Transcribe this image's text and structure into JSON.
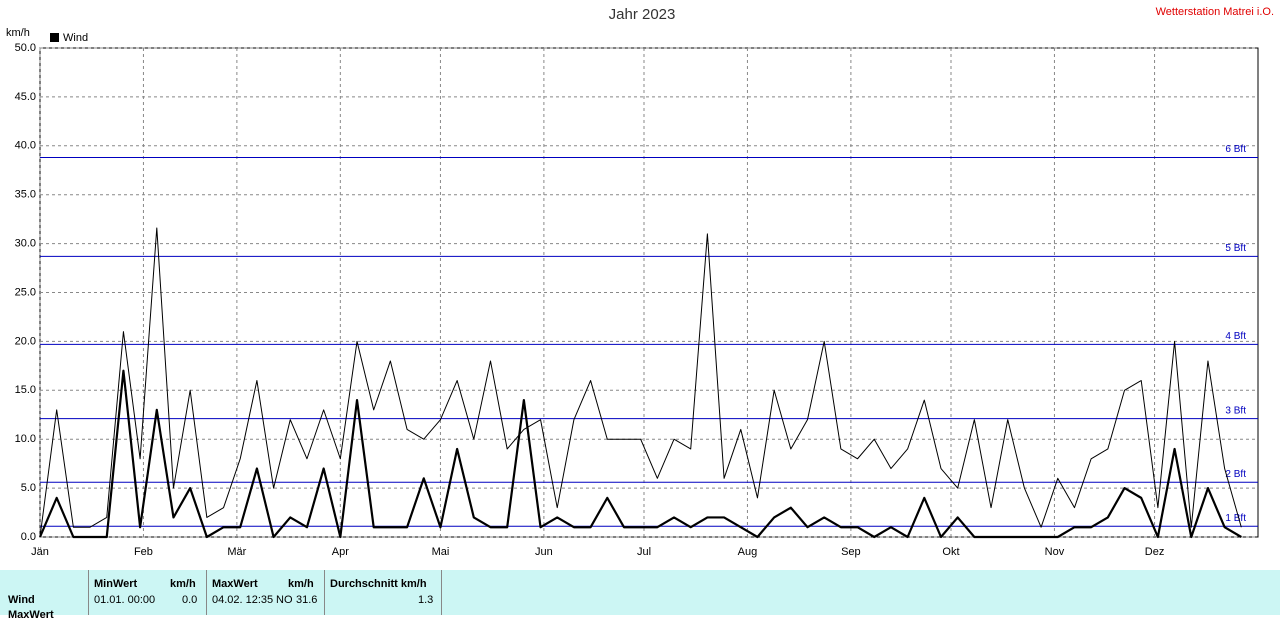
{
  "chart_data": {
    "type": "line",
    "title": "Jahr 2023",
    "station": "Wetterstation Matrei i.O.",
    "y_label": "km/h",
    "xlim": [
      0,
      365
    ],
    "xticks": [
      {
        "value": 0,
        "label": "Jän"
      },
      {
        "value": 31,
        "label": "Feb"
      },
      {
        "value": 59,
        "label": "Mär"
      },
      {
        "value": 90,
        "label": "Apr"
      },
      {
        "value": 120,
        "label": "Mai"
      },
      {
        "value": 151,
        "label": "Jun"
      },
      {
        "value": 181,
        "label": "Jul"
      },
      {
        "value": 212,
        "label": "Aug"
      },
      {
        "value": 243,
        "label": "Sep"
      },
      {
        "value": 273,
        "label": "Okt"
      },
      {
        "value": 304,
        "label": "Nov"
      },
      {
        "value": 334,
        "label": "Dez"
      }
    ],
    "ylim": [
      0,
      50
    ],
    "yticks": [
      {
        "value": 0,
        "label": "0.0"
      },
      {
        "value": 5,
        "label": "5.0"
      },
      {
        "value": 10,
        "label": "10.0"
      },
      {
        "value": 15,
        "label": "15.0"
      },
      {
        "value": 20,
        "label": "20.0"
      },
      {
        "value": 25,
        "label": "25.0"
      },
      {
        "value": 30,
        "label": "30.0"
      },
      {
        "value": 35,
        "label": "35.0"
      },
      {
        "value": 40,
        "label": "40.0"
      },
      {
        "value": 45,
        "label": "45.0"
      },
      {
        "value": 50,
        "label": "50.0"
      }
    ],
    "grid": true,
    "bft_lines": [
      {
        "value": 1.1,
        "label": "1 Bft"
      },
      {
        "value": 5.6,
        "label": "2 Bft"
      },
      {
        "value": 12.1,
        "label": "3 Bft"
      },
      {
        "value": 19.7,
        "label": "4 Bft"
      },
      {
        "value": 28.7,
        "label": "5 Bft"
      },
      {
        "value": 38.8,
        "label": "6 Bft"
      }
    ],
    "bft_color": "#0000c0",
    "x": [
      0,
      5,
      10,
      15,
      20,
      25,
      30,
      35,
      40,
      45,
      50,
      55,
      60,
      65,
      70,
      75,
      80,
      85,
      90,
      95,
      100,
      105,
      110,
      115,
      120,
      125,
      130,
      135,
      140,
      145,
      150,
      155,
      160,
      165,
      170,
      175,
      180,
      185,
      190,
      195,
      200,
      205,
      210,
      215,
      220,
      225,
      230,
      235,
      240,
      245,
      250,
      255,
      260,
      265,
      270,
      275,
      280,
      285,
      290,
      295,
      300,
      305,
      310,
      315,
      320,
      325,
      330,
      335,
      340,
      345,
      350,
      355,
      360
    ],
    "series": [
      {
        "color": "#000000",
        "width": 1,
        "values": [
          0,
          13,
          1,
          1,
          2,
          21,
          8,
          31.6,
          5,
          15,
          2,
          3,
          8,
          16,
          5,
          12,
          8,
          13,
          8,
          20,
          13,
          18,
          11,
          10,
          12,
          16,
          10,
          18,
          9,
          11,
          12,
          3,
          12,
          16,
          10,
          10,
          10,
          6,
          10,
          9,
          31,
          6,
          11,
          4,
          15,
          9,
          12,
          20,
          9,
          8,
          10,
          7,
          9,
          14,
          7,
          5,
          12,
          3,
          12,
          5,
          1,
          6,
          3,
          8,
          9,
          15,
          16,
          3,
          20,
          1,
          18,
          7,
          1
        ]
      },
      {
        "name": "Wind",
        "color": "#000000",
        "width": 2.2,
        "values": [
          0,
          4,
          0,
          0,
          0,
          17,
          1,
          13,
          2,
          5,
          0,
          1,
          1,
          7,
          0,
          2,
          1,
          7,
          0,
          14,
          1,
          1,
          1,
          6,
          1,
          9,
          2,
          1,
          1,
          14,
          1,
          2,
          1,
          1,
          4,
          1,
          1,
          1,
          2,
          1,
          2,
          2,
          1,
          0,
          2,
          3,
          1,
          2,
          1,
          1,
          0,
          1,
          0,
          4,
          0,
          2,
          0,
          0,
          0,
          0,
          0,
          0,
          1,
          1,
          2,
          5,
          4,
          0,
          9,
          0,
          5,
          1,
          0
        ]
      }
    ]
  },
  "table": {
    "row_labels": [
      "Wind",
      "MaxWert"
    ],
    "min": {
      "header": "MinWert",
      "unit": "km/h",
      "time": "01.01.  00:00",
      "value": "0.0"
    },
    "max": {
      "header": "MaxWert",
      "unit": "km/h",
      "time": "04.02.  12:35",
      "dir": "NO",
      "value": "31.6"
    },
    "avg": {
      "header": "Durchschnitt km/h",
      "value": "1.3"
    }
  }
}
